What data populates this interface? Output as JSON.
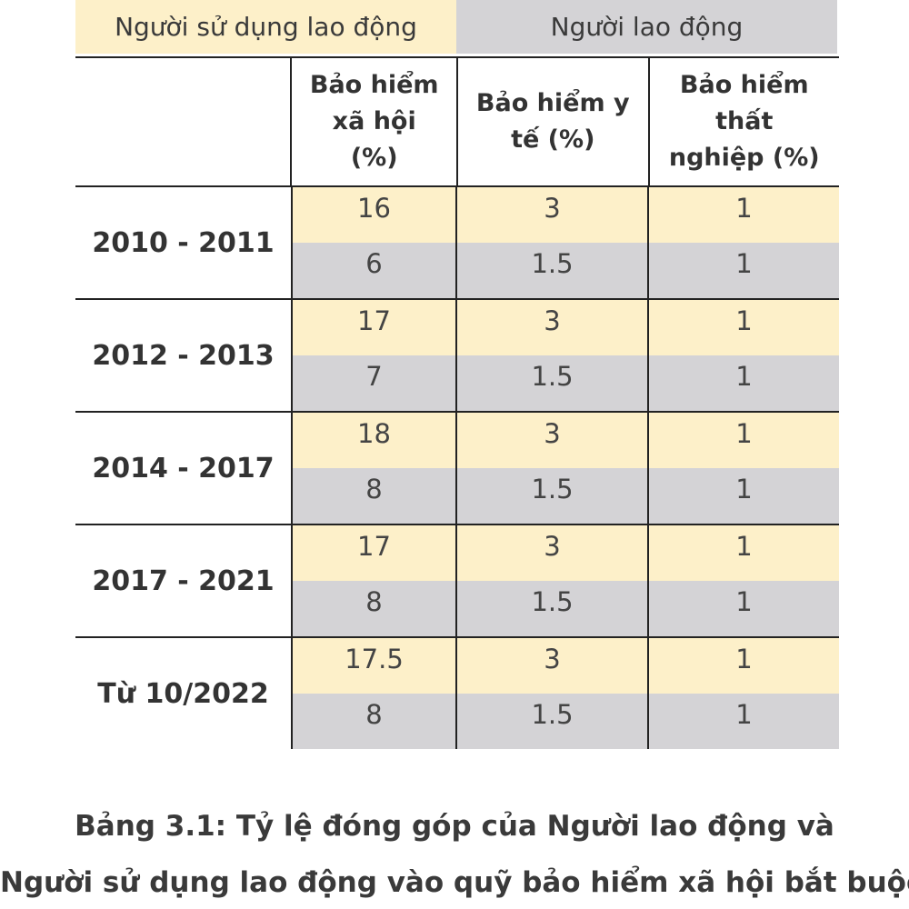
{
  "legend": {
    "employer": "Người sử dụng lao động",
    "employee": "Người lao động",
    "colors": {
      "employer": "#fdf0c9",
      "employee": "#d4d3d6"
    }
  },
  "table": {
    "headers": {
      "label": "",
      "social": "Bảo hiểm\nxã hội\n(%)",
      "health": "Bảo hiểm y\ntế (%)",
      "unemployment": "Bảo hiểm\nthất\nnghiệp (%)"
    },
    "groups": [
      {
        "period": "2010 - 2011",
        "employer": {
          "social": "16",
          "health": "3",
          "unemployment": "1"
        },
        "employee": {
          "social": "6",
          "health": "1.5",
          "unemployment": "1"
        }
      },
      {
        "period": "2012 - 2013",
        "employer": {
          "social": "17",
          "health": "3",
          "unemployment": "1"
        },
        "employee": {
          "social": "7",
          "health": "1.5",
          "unemployment": "1"
        }
      },
      {
        "period": "2014 - 2017",
        "employer": {
          "social": "18",
          "health": "3",
          "unemployment": "1"
        },
        "employee": {
          "social": "8",
          "health": "1.5",
          "unemployment": "1"
        }
      },
      {
        "period": "2017 - 2021",
        "employer": {
          "social": "17",
          "health": "3",
          "unemployment": "1"
        },
        "employee": {
          "social": "8",
          "health": "1.5",
          "unemployment": "1"
        }
      },
      {
        "period": "Từ 10/2022",
        "employer": {
          "social": "17.5",
          "health": "3",
          "unemployment": "1"
        },
        "employee": {
          "social": "8",
          "health": "1.5",
          "unemployment": "1"
        }
      }
    ]
  },
  "caption": {
    "line1": "Bảng 3.1: Tỷ lệ đóng góp của Người lao động và",
    "line2": "Người sử dụng lao động vào quỹ bảo hiểm xã hội bắt buộc"
  }
}
